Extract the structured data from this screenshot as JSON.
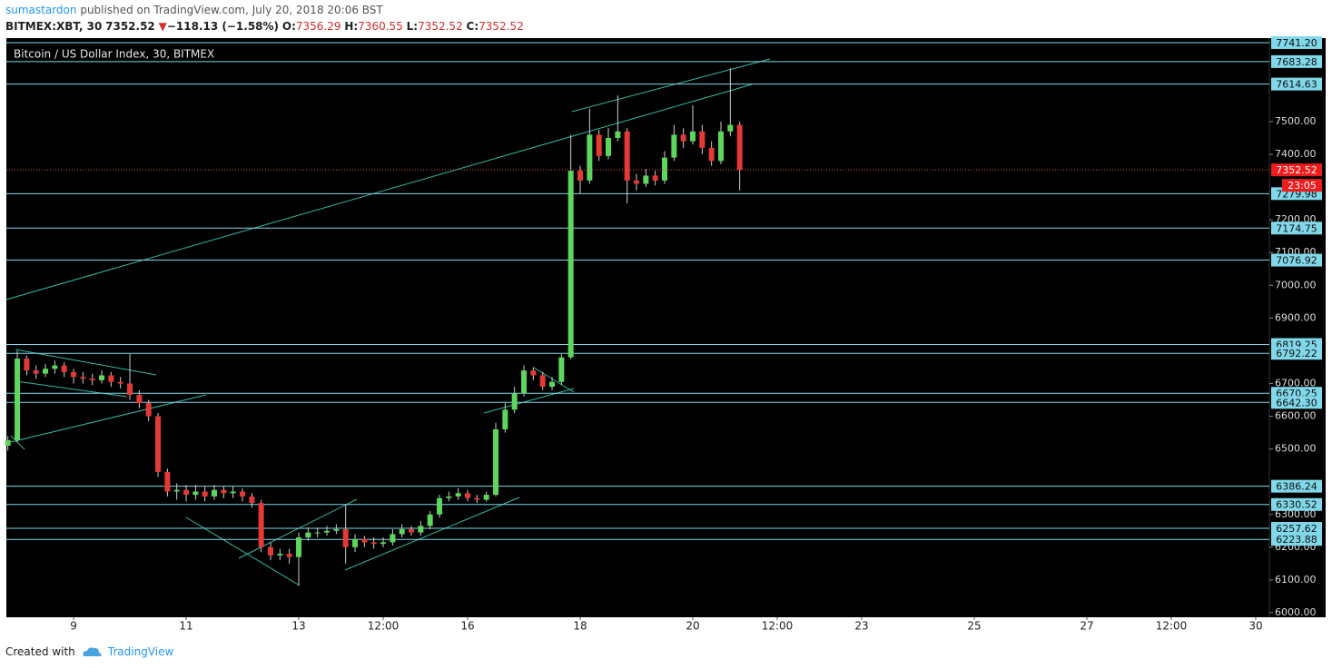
{
  "header": {
    "author": "sumastardon",
    "published": "published on TradingView.com, July 20, 2018 20:06 BST",
    "symbol": "BITMEX:XBT, 30",
    "last": "7352.52",
    "arrow": "▼",
    "change": "−118.13 (−1.58%)",
    "o_label": "O:",
    "o": "7356.29",
    "h_label": "H:",
    "h": "7360.55",
    "l_label": "L:",
    "l": "7352.52",
    "c_label": "C:",
    "c": "7352.52"
  },
  "footer": {
    "created": "Created with",
    "brand": "TradingView"
  },
  "chart_data": {
    "type": "candlestick",
    "title": "Bitcoin / US Dollar Index, 30, BITMEX",
    "up_color": "#5cd65c",
    "down_color": "#e53935",
    "wick_color": "#cfcfcf",
    "level_color": "#80d8ea",
    "xlim": [
      7.806,
      30.242
    ],
    "ylim": [
      5986,
      7755
    ],
    "xticks": [
      9,
      11,
      13,
      {
        "value": 14.5,
        "label": "12:00"
      },
      16,
      18,
      20,
      {
        "value": 21.5,
        "label": "12:00"
      },
      23,
      25,
      27,
      {
        "value": 28.5,
        "label": "12:00"
      },
      30
    ],
    "yticks": [
      {
        "value": 6000,
        "label": "6000.00"
      },
      {
        "value": 6100,
        "label": "6100.00"
      },
      {
        "value": 6200,
        "label": "6200.00"
      },
      {
        "value": 6300,
        "label": "6300.00"
      },
      {
        "value": 6500,
        "label": "6500.00"
      },
      {
        "value": 6600,
        "label": "6600.00"
      },
      {
        "value": 6700,
        "label": "6700.00"
      },
      {
        "value": 6900,
        "label": "6900.00"
      },
      {
        "value": 7000,
        "label": "7000.00"
      },
      {
        "value": 7100,
        "label": "7100.00"
      },
      {
        "value": 7200,
        "label": "7200.00"
      },
      {
        "value": 7400,
        "label": "7400.00"
      },
      {
        "value": 7500,
        "label": "7500.00"
      }
    ],
    "levels": [
      {
        "value": 7741.2,
        "label": "7741.20"
      },
      {
        "value": 7683.28,
        "label": "7683.28"
      },
      {
        "value": 7614.63,
        "label": "7614.63"
      },
      {
        "value": 7279.98,
        "label": "7279.98"
      },
      {
        "value": 7174.75,
        "label": "7174.75"
      },
      {
        "value": 7076.92,
        "label": "7076.92"
      },
      {
        "value": 6819.25,
        "label": "6819.25"
      },
      {
        "value": 6792.22,
        "label": "6792.22"
      },
      {
        "value": 6670.25,
        "label": "6670.25"
      },
      {
        "value": 6642.3,
        "label": "6642.30"
      },
      {
        "value": 6386.24,
        "label": "6386.24"
      },
      {
        "value": 6330.52,
        "label": "6330.52"
      },
      {
        "value": 6257.62,
        "label": "6257.62"
      },
      {
        "value": 6223.88,
        "label": "6223.88"
      }
    ],
    "last_price": {
      "value": 7352.52,
      "label": "7352.52"
    },
    "countdown": "23:05",
    "x": [
      7.833,
      8,
      8.167,
      8.333,
      8.5,
      8.667,
      8.833,
      9,
      9.167,
      9.333,
      9.5,
      9.667,
      9.833,
      10,
      10.167,
      10.333,
      10.5,
      10.667,
      10.833,
      11,
      11.167,
      11.333,
      11.5,
      11.667,
      11.833,
      12,
      12.167,
      12.333,
      12.5,
      12.667,
      12.833,
      13,
      13.167,
      13.333,
      13.5,
      13.667,
      13.833,
      14,
      14.167,
      14.333,
      14.5,
      14.667,
      14.833,
      15,
      15.167,
      15.333,
      15.5,
      15.667,
      15.833,
      16,
      16.167,
      16.333,
      16.5,
      16.667,
      16.833,
      17,
      17.167,
      17.333,
      17.5,
      17.667,
      17.833,
      18,
      18.167,
      18.333,
      18.5,
      18.667,
      18.833,
      19,
      19.167,
      19.333,
      19.5,
      19.667,
      19.833,
      20,
      20.167,
      20.333,
      20.5,
      20.667,
      20.833
    ],
    "open": [
      6510,
      6527,
      6776,
      6740,
      6730,
      6745,
      6755,
      6735,
      6720,
      6715,
      6710,
      6725,
      6705,
      6700,
      6665,
      6640,
      6600,
      6430,
      6370,
      6375,
      6360,
      6370,
      6355,
      6375,
      6365,
      6370,
      6355,
      6335,
      6200,
      6175,
      6180,
      6170,
      6230,
      6245,
      6245,
      6250,
      6255,
      6200,
      6225,
      6215,
      6210,
      6215,
      6240,
      6255,
      6245,
      6265,
      6300,
      6350,
      6355,
      6365,
      6350,
      6345,
      6360,
      6560,
      6620,
      6670,
      6740,
      6725,
      6690,
      6705,
      6780,
      7350,
      7320,
      7460,
      7395,
      7450,
      7470,
      7320,
      7310,
      7335,
      7320,
      7390,
      7460,
      7440,
      7470,
      7420,
      7380,
      7470,
      7490
    ],
    "high": [
      6540,
      6800,
      6785,
      6755,
      6760,
      6770,
      6765,
      6745,
      6735,
      6730,
      6740,
      6735,
      6720,
      6790,
      6680,
      6650,
      6610,
      6440,
      6395,
      6390,
      6390,
      6385,
      6390,
      6385,
      6385,
      6380,
      6365,
      6345,
      6215,
      6195,
      6195,
      6245,
      6260,
      6260,
      6265,
      6270,
      6330,
      6240,
      6235,
      6230,
      6230,
      6255,
      6270,
      6265,
      6280,
      6310,
      6360,
      6370,
      6380,
      6375,
      6360,
      6370,
      6580,
      6640,
      6690,
      6755,
      6750,
      6735,
      6720,
      6790,
      7460,
      7365,
      7540,
      7475,
      7480,
      7580,
      7480,
      7340,
      7355,
      7350,
      7410,
      7490,
      7480,
      7550,
      7490,
      7440,
      7500,
      7663,
      7500
    ],
    "low": [
      6495,
      6520,
      6725,
      6715,
      6720,
      6730,
      6720,
      6700,
      6700,
      6695,
      6700,
      6690,
      6685,
      6650,
      6625,
      6585,
      6415,
      6355,
      6345,
      6340,
      6345,
      6340,
      6345,
      6350,
      6350,
      6340,
      6320,
      6185,
      6160,
      6160,
      6150,
      6083,
      6220,
      6230,
      6235,
      6240,
      6150,
      6185,
      6200,
      6195,
      6200,
      6205,
      6230,
      6235,
      6235,
      6255,
      6290,
      6340,
      6345,
      6340,
      6335,
      6340,
      6355,
      6550,
      6610,
      6660,
      6710,
      6680,
      6680,
      6695,
      6775,
      7280,
      7310,
      7380,
      7385,
      7440,
      7250,
      7290,
      7300,
      7305,
      7310,
      7380,
      7420,
      7430,
      7400,
      7365,
      7370,
      7455,
      7290
    ],
    "close": [
      6527,
      6776,
      6740,
      6730,
      6745,
      6755,
      6735,
      6720,
      6715,
      6710,
      6725,
      6705,
      6700,
      6665,
      6640,
      6600,
      6430,
      6370,
      6375,
      6360,
      6370,
      6355,
      6375,
      6365,
      6370,
      6355,
      6335,
      6200,
      6175,
      6180,
      6170,
      6230,
      6245,
      6245,
      6250,
      6255,
      6200,
      6225,
      6215,
      6210,
      6215,
      6240,
      6255,
      6245,
      6265,
      6300,
      6350,
      6355,
      6365,
      6350,
      6345,
      6360,
      6560,
      6620,
      6670,
      6740,
      6725,
      6690,
      6705,
      6780,
      7350,
      7320,
      7460,
      7395,
      7450,
      7470,
      7320,
      7310,
      7335,
      7320,
      7390,
      7460,
      7440,
      7470,
      7420,
      7380,
      7470,
      7490,
      7352.52
    ]
  }
}
